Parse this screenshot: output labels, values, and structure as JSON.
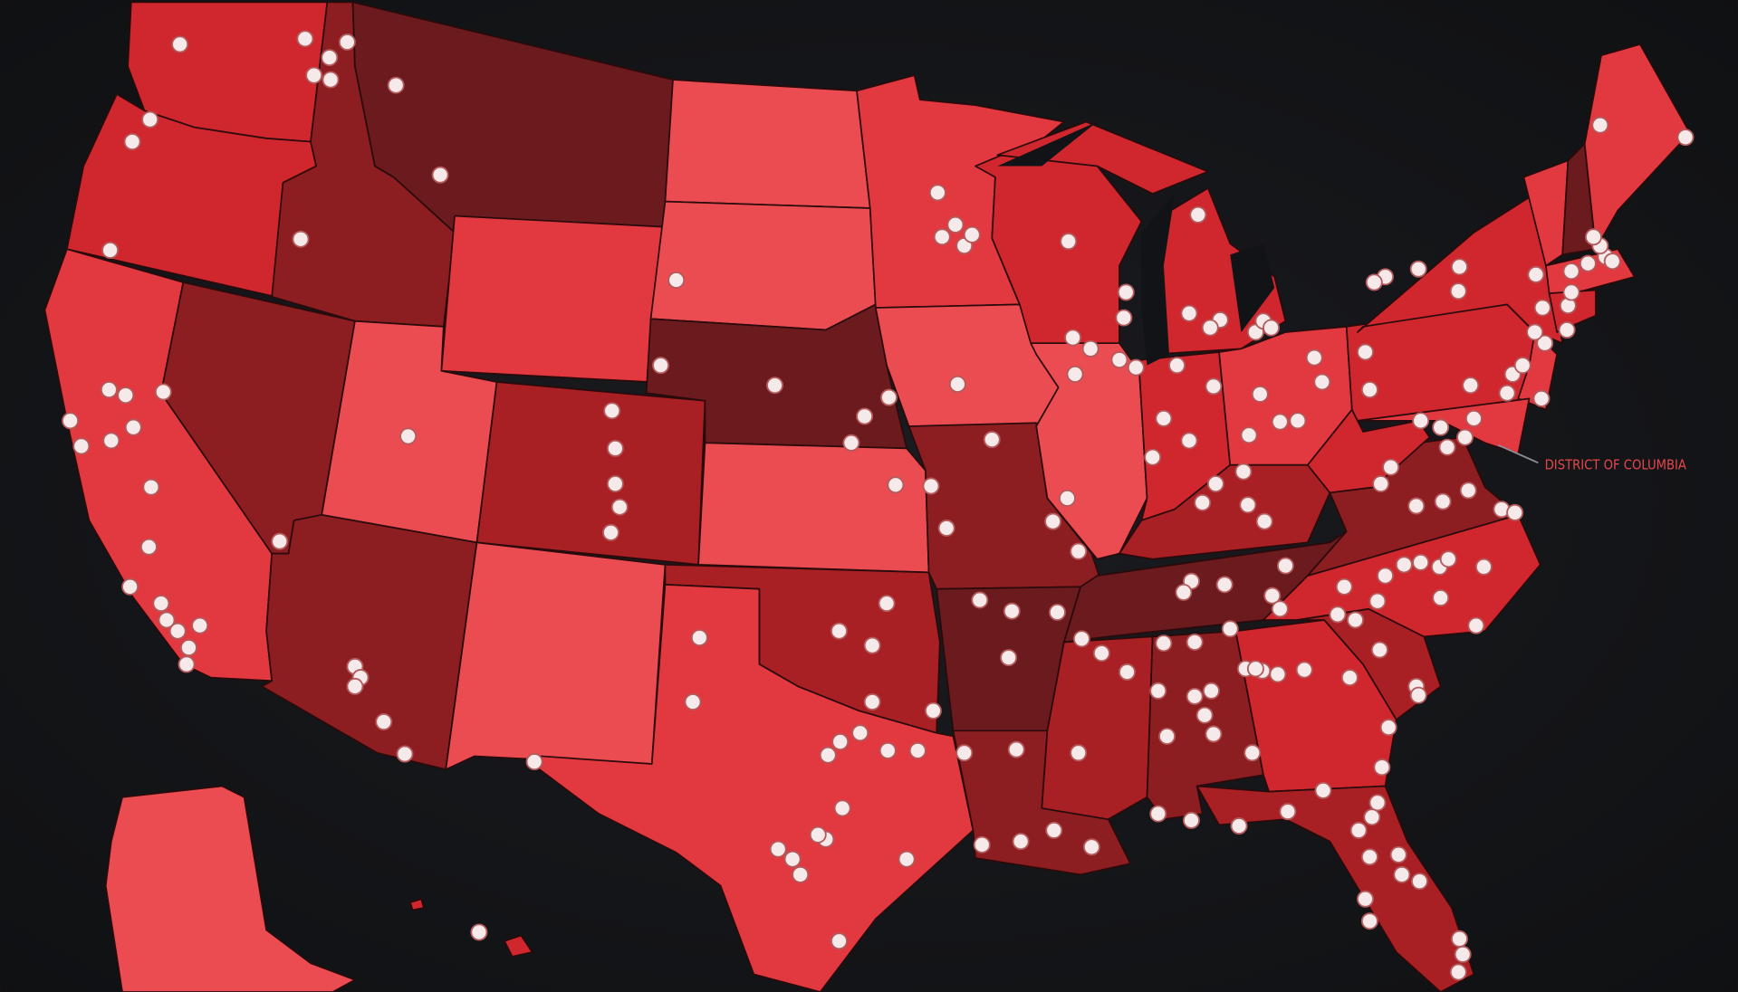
{
  "labels": {
    "dc": "DISTRICT OF COLUMBIA"
  }
}
